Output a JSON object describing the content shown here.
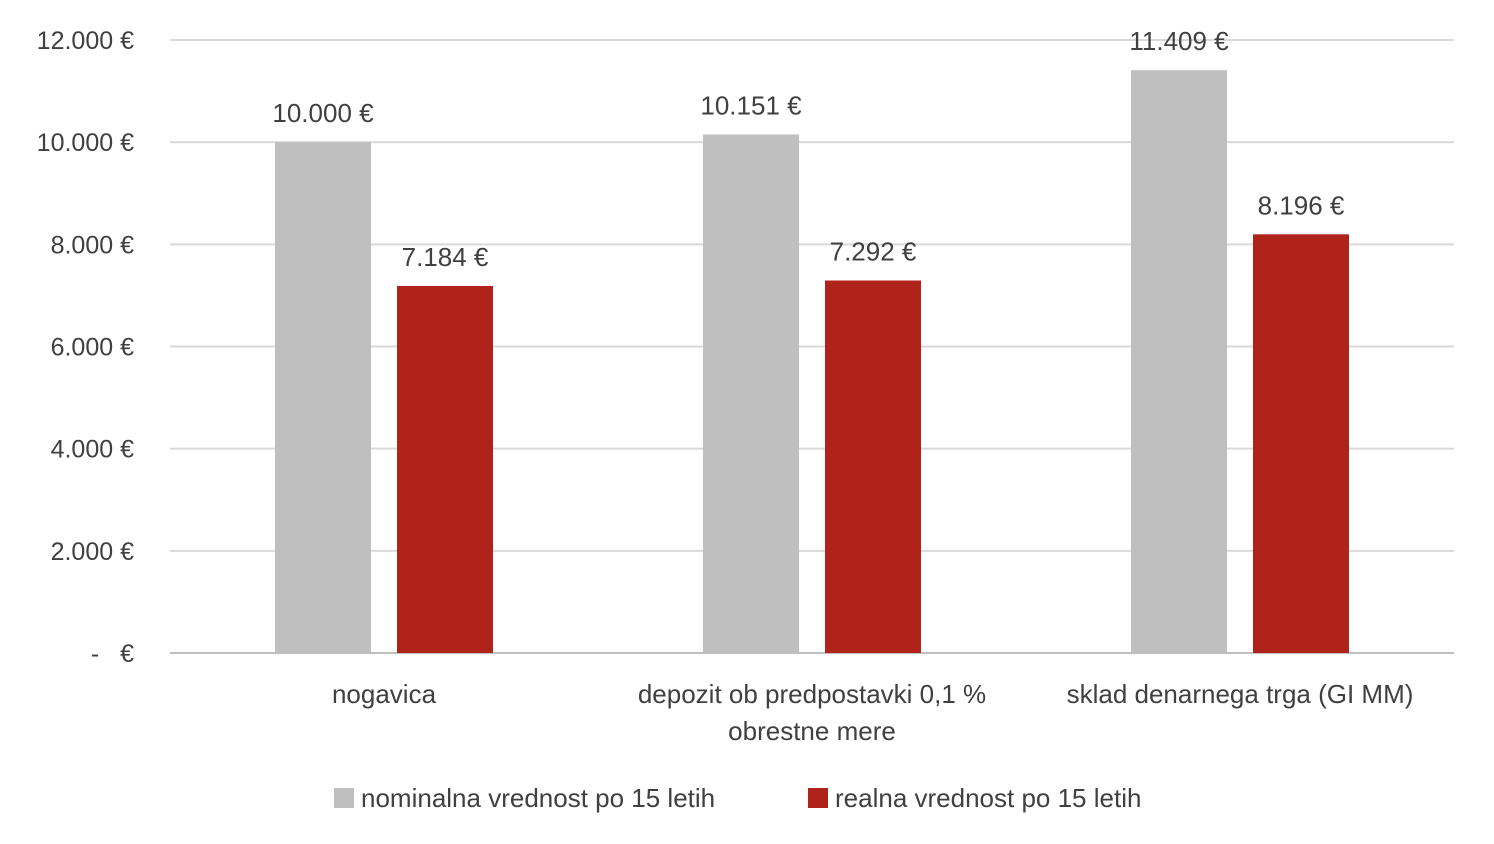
{
  "chart_data": {
    "type": "bar",
    "title": "",
    "xlabel": "",
    "ylabel": "",
    "ylim": [
      0,
      12000
    ],
    "yticks": [
      {
        "value": 0,
        "label": "-   €"
      },
      {
        "value": 2000,
        "label": "2.000 €"
      },
      {
        "value": 4000,
        "label": "4.000 €"
      },
      {
        "value": 6000,
        "label": "6.000 €"
      },
      {
        "value": 8000,
        "label": "8.000 €"
      },
      {
        "value": 10000,
        "label": "10.000 €"
      },
      {
        "value": 12000,
        "label": "12.000 €"
      }
    ],
    "categories": [
      [
        "nogavica"
      ],
      [
        "depozit ob predpostavki 0,1 %",
        "obrestne mere"
      ],
      [
        "sklad denarnega trga (GI MM)"
      ]
    ],
    "series": [
      {
        "name": "nominalna vrednost po 15 letih",
        "color": "#bfbfbf",
        "values": [
          10000,
          10151,
          11409
        ],
        "labels": [
          "10.000 €",
          "10.151 €",
          "11.409 €"
        ]
      },
      {
        "name": "realna vrednost po 15 letih",
        "color": "#b0231a",
        "values": [
          7184,
          7292,
          8196
        ],
        "labels": [
          "7.184 €",
          "7.292 €",
          "8.196 €"
        ]
      }
    ],
    "grid": true,
    "legend": "bottom"
  }
}
